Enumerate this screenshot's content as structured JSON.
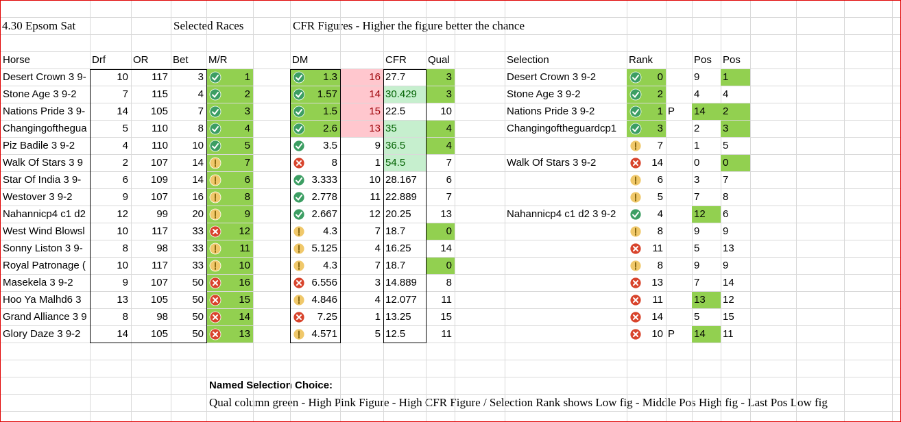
{
  "sheet": {
    "title": "4.30 Epsom Sat",
    "selected_heading": "Selected Races",
    "cfr_heading": "CFR Figures - Higher the figure better the chance",
    "headers": {
      "horse": "Horse",
      "drf": "Drf",
      "or": "OR",
      "bet": "Bet",
      "mr": "M/R",
      "dm": "DM",
      "cfr": "CFR",
      "qual": "Qual",
      "selection": "Selection",
      "rank": "Rank",
      "pos_mid": "Pos",
      "pos_last": "Pos"
    },
    "colors": {
      "green": {
        "bg": "#92d050",
        "fg": "#000000"
      },
      "pink": {
        "bg": "#ffc7ce",
        "fg": "#9c0006"
      },
      "light": {
        "bg": "#c6efce",
        "fg": "#006100"
      }
    },
    "rows": [
      {
        "horse": "Desert Crown 3 9-",
        "drf": 10,
        "or": 117,
        "bet": 3,
        "mr_icon": "check",
        "mr": 1,
        "dm_icon": "check",
        "dm": 1.3,
        "cfr_rank": 16,
        "cfr": 27.7,
        "qual": 3,
        "selection": "Desert Crown 3 9-2",
        "rank_icon": "check",
        "rank": 0,
        "pos_mid": 9,
        "pos_last": 1,
        "fills": {
          "mr": "green",
          "dm": "green",
          "cfr_rank": "pink",
          "qual": "green",
          "rank": "green",
          "pos_last": "green"
        }
      },
      {
        "horse": "Stone Age 3 9-2",
        "drf": 7,
        "or": 115,
        "bet": 4,
        "mr_icon": "check",
        "mr": 2,
        "dm_icon": "check",
        "dm": 1.57,
        "cfr_rank": 14,
        "cfr": 30.429,
        "qual": 3,
        "selection": "Stone Age 3 9-2",
        "rank_icon": "check",
        "rank": 2,
        "pos_mid": 4,
        "pos_last": 4,
        "fills": {
          "mr": "green",
          "dm": "green",
          "cfr_rank": "pink",
          "cfr": "light",
          "qual": "green",
          "rank": "green"
        }
      },
      {
        "horse": "Nations Pride 3 9-",
        "drf": 14,
        "or": 105,
        "bet": 7,
        "mr_icon": "check",
        "mr": 3,
        "dm_icon": "check",
        "dm": 1.5,
        "cfr_rank": 15,
        "cfr": 22.5,
        "qual": 10,
        "selection": "Nations Pride 3 9-2",
        "rank_icon": "check",
        "rank": 1,
        "p": "P",
        "pos_mid": 14,
        "pos_last": 2,
        "fills": {
          "mr": "green",
          "dm": "green",
          "cfr_rank": "pink",
          "rank": "green",
          "pos_mid": "green",
          "pos_last": "green"
        }
      },
      {
        "horse": "Changingofthegua",
        "drf": 5,
        "or": 110,
        "bet": 8,
        "mr_icon": "check",
        "mr": 4,
        "dm_icon": "check",
        "dm": 2.6,
        "cfr_rank": 13,
        "cfr": 35,
        "qual": 4,
        "selection": "Changingoftheguardcp1",
        "rank_icon": "check",
        "rank": 3,
        "pos_mid": 2,
        "pos_last": 3,
        "fills": {
          "mr": "green",
          "dm": "green",
          "cfr_rank": "pink",
          "cfr": "light",
          "qual": "green",
          "rank": "green",
          "pos_last": "green"
        }
      },
      {
        "horse": "Piz Badile 3 9-2",
        "drf": 4,
        "or": 110,
        "bet": 10,
        "mr_icon": "check",
        "mr": 5,
        "dm_icon": "check",
        "dm": 3.5,
        "cfr_rank": 9,
        "cfr": 36.5,
        "qual": 4,
        "rank_icon": "warn",
        "rank": 7,
        "pos_mid": 1,
        "pos_last": 5,
        "fills": {
          "mr": "green",
          "cfr": "light",
          "qual": "green"
        }
      },
      {
        "horse": "Walk Of Stars 3 9",
        "drf": 2,
        "or": 107,
        "bet": 14,
        "mr_icon": "warn",
        "mr": 7,
        "dm_icon": "cross",
        "dm": 8,
        "cfr_rank": 1,
        "cfr": 54.5,
        "qual": 7,
        "selection": "Walk Of Stars 3 9-2",
        "rank_icon": "cross",
        "rank": 14,
        "pos_mid": 0,
        "pos_last": 0,
        "fills": {
          "mr": "green",
          "cfr": "light",
          "pos_last": "green"
        }
      },
      {
        "horse": "Star Of India 3 9-",
        "drf": 6,
        "or": 109,
        "bet": 14,
        "mr_icon": "warn",
        "mr": 6,
        "dm_icon": "check",
        "dm": 3.333,
        "cfr_rank": 10,
        "cfr": 28.167,
        "qual": 6,
        "rank_icon": "warn",
        "rank": 6,
        "pos_mid": 3,
        "pos_last": 7,
        "fills": {
          "mr": "green"
        }
      },
      {
        "horse": "Westover 3 9-2",
        "drf": 9,
        "or": 107,
        "bet": 16,
        "mr_icon": "warn",
        "mr": 8,
        "dm_icon": "check",
        "dm": 2.778,
        "cfr_rank": 11,
        "cfr": 22.889,
        "qual": 7,
        "rank_icon": "warn",
        "rank": 5,
        "pos_mid": 7,
        "pos_last": 8,
        "fills": {
          "mr": "green"
        }
      },
      {
        "horse": "Nahannicp4 c1 d2",
        "drf": 12,
        "or": 99,
        "bet": 20,
        "mr_icon": "warn",
        "mr": 9,
        "dm_icon": "check",
        "dm": 2.667,
        "cfr_rank": 12,
        "cfr": 20.25,
        "qual": 13,
        "selection": "Nahannicp4 c1 d2 3 9-2",
        "rank_icon": "check",
        "rank": 4,
        "pos_mid": 12,
        "pos_last": 6,
        "fills": {
          "mr": "green",
          "pos_mid": "green"
        }
      },
      {
        "horse": "West Wind Blowsl",
        "drf": 10,
        "or": 117,
        "bet": 33,
        "mr_icon": "cross",
        "mr": 12,
        "dm_icon": "warn",
        "dm": 4.3,
        "cfr_rank": 7,
        "cfr": 18.7,
        "qual": 0,
        "rank_icon": "warn",
        "rank": 8,
        "pos_mid": 9,
        "pos_last": 9,
        "fills": {
          "mr": "green",
          "qual": "green"
        }
      },
      {
        "horse": "Sonny Liston 3 9-",
        "drf": 8,
        "or": 98,
        "bet": 33,
        "mr_icon": "warn",
        "mr": 11,
        "dm_icon": "warn",
        "dm": 5.125,
        "cfr_rank": 4,
        "cfr": 16.25,
        "qual": 14,
        "rank_icon": "cross",
        "rank": 11,
        "pos_mid": 5,
        "pos_last": 13,
        "fills": {
          "mr": "green"
        }
      },
      {
        "horse": "Royal Patronage (",
        "drf": 10,
        "or": 117,
        "bet": 33,
        "mr_icon": "warn",
        "mr": 10,
        "dm_icon": "warn",
        "dm": 4.3,
        "cfr_rank": 7,
        "cfr": 18.7,
        "qual": 0,
        "rank_icon": "warn",
        "rank": 8,
        "pos_mid": 9,
        "pos_last": 9,
        "fills": {
          "mr": "green",
          "qual": "green"
        }
      },
      {
        "horse": "Masekela 3 9-2",
        "drf": 9,
        "or": 107,
        "bet": 50,
        "mr_icon": "cross",
        "mr": 16,
        "dm_icon": "cross",
        "dm": 6.556,
        "cfr_rank": 3,
        "cfr": 14.889,
        "qual": 8,
        "rank_icon": "cross",
        "rank": 13,
        "pos_mid": 7,
        "pos_last": 14,
        "fills": {
          "mr": "green"
        }
      },
      {
        "horse": "Hoo Ya Malhd6 3",
        "drf": 13,
        "or": 105,
        "bet": 50,
        "mr_icon": "cross",
        "mr": 15,
        "dm_icon": "warn",
        "dm": 4.846,
        "cfr_rank": 4,
        "cfr": 12.077,
        "qual": 11,
        "rank_icon": "cross",
        "rank": 11,
        "pos_mid": 13,
        "pos_last": 12,
        "fills": {
          "mr": "green",
          "pos_mid": "green"
        }
      },
      {
        "horse": "Grand Alliance 3 9",
        "drf": 8,
        "or": 98,
        "bet": 50,
        "mr_icon": "cross",
        "mr": 14,
        "dm_icon": "cross",
        "dm": 7.25,
        "cfr_rank": 1,
        "cfr": 13.25,
        "qual": 15,
        "rank_icon": "cross",
        "rank": 14,
        "pos_mid": 5,
        "pos_last": 15,
        "fills": {
          "mr": "green"
        }
      },
      {
        "horse": "Glory Daze 3 9-2",
        "drf": 14,
        "or": 105,
        "bet": 50,
        "mr_icon": "cross",
        "mr": 13,
        "dm_icon": "warn",
        "dm": 4.571,
        "cfr_rank": 5,
        "cfr": 12.5,
        "qual": 11,
        "rank_icon": "cross",
        "rank": 10,
        "p": "P",
        "pos_mid": 14,
        "pos_last": 11,
        "fills": {
          "mr": "green",
          "pos_mid": "green"
        }
      }
    ],
    "note_title": "Named Selection Choice:",
    "note_text": "Qual column green - High Pink Figure - High CFR Figure / Selection Rank shows Low fig - Middle Pos High fig - Last Pos Low fig"
  }
}
